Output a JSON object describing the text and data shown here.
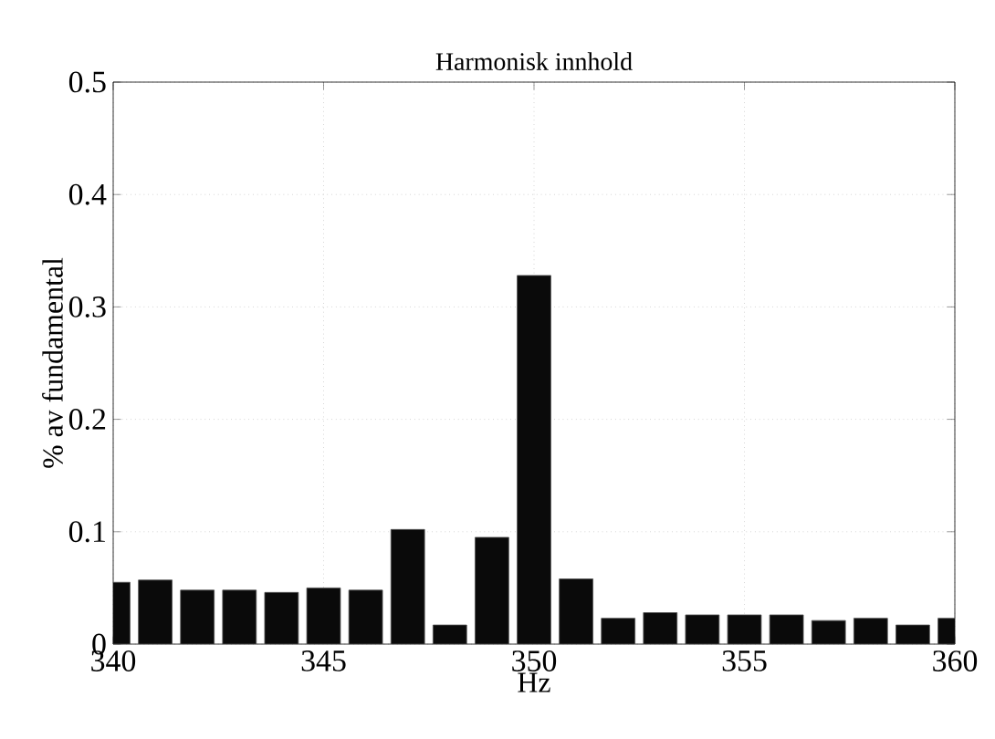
{
  "chart_data": {
    "type": "bar",
    "title": "Harmonisk innhold",
    "xlabel": "Hz",
    "ylabel": "% av fundamental",
    "x": [
      340,
      341,
      342,
      343,
      344,
      345,
      346,
      347,
      348,
      349,
      350,
      351,
      352,
      353,
      354,
      355,
      356,
      357,
      358,
      359,
      360
    ],
    "values": [
      0.055,
      0.057,
      0.048,
      0.048,
      0.046,
      0.05,
      0.048,
      0.102,
      0.017,
      0.095,
      0.328,
      0.058,
      0.023,
      0.028,
      0.026,
      0.026,
      0.026,
      0.021,
      0.023,
      0.017,
      0.023
    ],
    "color": "#0a0a0a",
    "xlim": [
      340,
      360
    ],
    "ylim": [
      0,
      0.5
    ],
    "xticks": [
      340,
      345,
      350,
      355,
      360
    ],
    "yticks": [
      0,
      0.1,
      0.2,
      0.3,
      0.4,
      0.5
    ],
    "grid": true
  }
}
